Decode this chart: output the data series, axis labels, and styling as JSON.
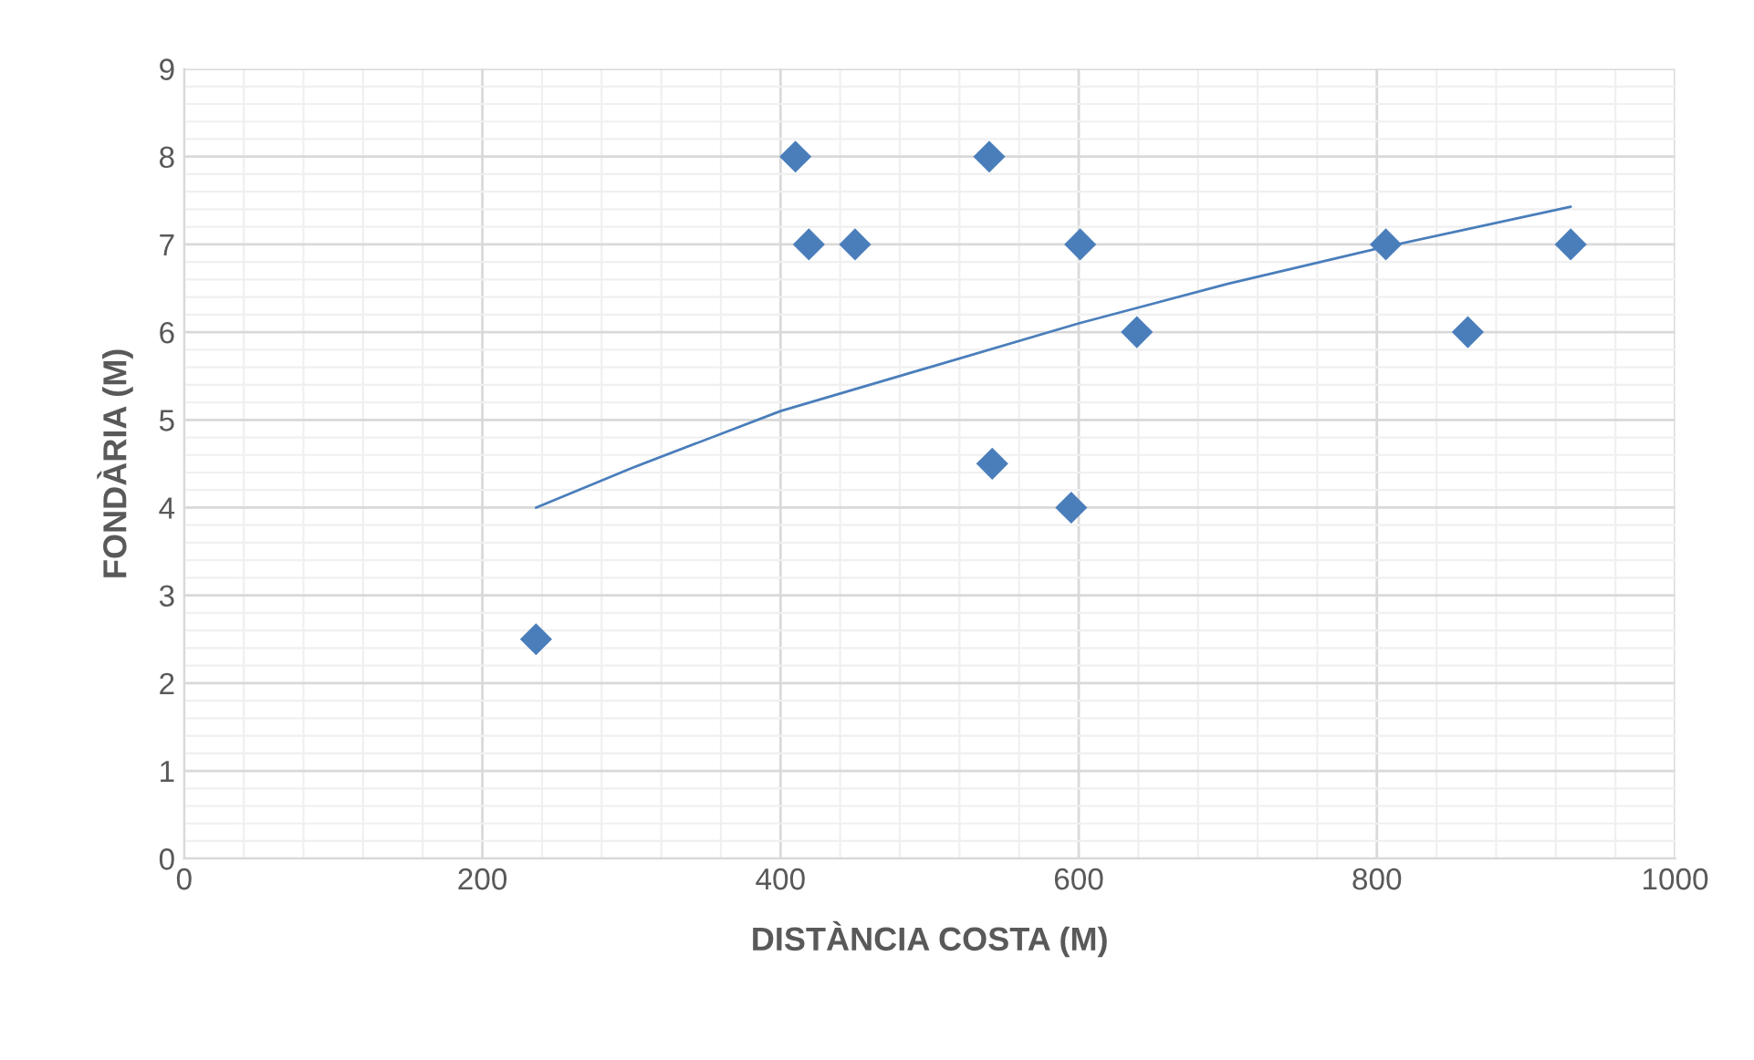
{
  "chart_data": {
    "type": "scatter",
    "xlabel": "DISTÀNCIA COSTA (M)",
    "ylabel": "FONDÀRIA (M)",
    "series": [
      {
        "color": "#4a7ebb",
        "marker": "diamond",
        "x": [
          236,
          410,
          419,
          450,
          540,
          542,
          595,
          601,
          639,
          806,
          861,
          930
        ],
        "values": [
          2.5,
          8,
          7,
          7,
          8,
          4.5,
          4,
          7,
          6,
          7,
          6,
          7
        ]
      },
      {
        "type": "line",
        "color": "#4a7ebb",
        "marker": "none",
        "line_style": "solid",
        "x": [
          236,
          300,
          400,
          500,
          600,
          700,
          800,
          930
        ],
        "values": [
          4.0,
          4.45,
          5.1,
          5.6,
          6.1,
          6.55,
          6.95,
          7.43
        ]
      }
    ],
    "xlim": [
      0,
      1000
    ],
    "xticks": [
      0,
      200,
      400,
      600,
      800,
      1000
    ],
    "ylim": [
      0,
      9
    ],
    "yticks": [
      0,
      1,
      2,
      3,
      4,
      5,
      6,
      7,
      8,
      9
    ],
    "grid": true,
    "legend": false
  }
}
